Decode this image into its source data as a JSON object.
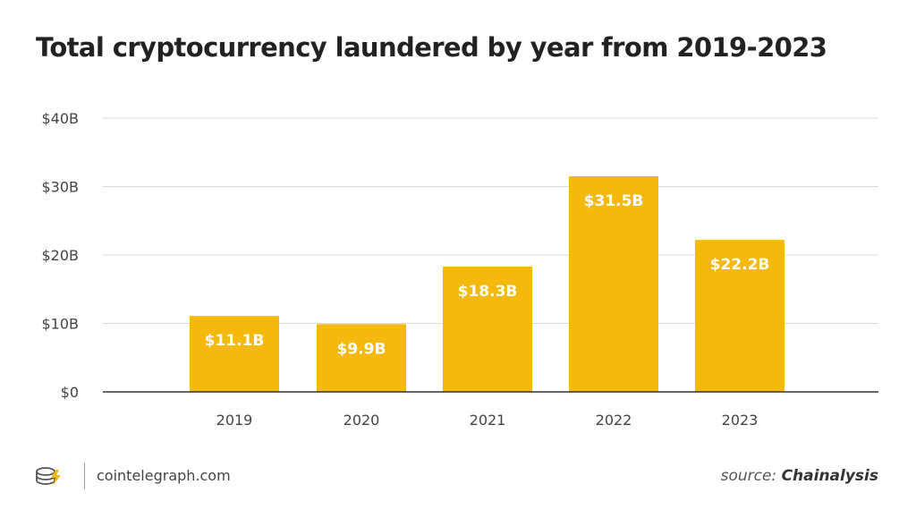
{
  "chart_data": {
    "type": "bar",
    "title": "Total cryptocurrency laundered by year from 2019-2023",
    "categories": [
      "2019",
      "2020",
      "2021",
      "2022",
      "2023"
    ],
    "values": [
      11.1,
      9.9,
      18.3,
      31.5,
      22.2
    ],
    "data_labels": [
      "$11.1B",
      "$9.9B",
      "$18.3B",
      "$31.5B",
      "$22.2B"
    ],
    "ylim": [
      0,
      40
    ],
    "yticks": [
      0,
      10,
      20,
      30,
      40
    ],
    "ytick_labels": [
      "$0",
      "$10B",
      "$20B",
      "$30B",
      "$40B"
    ],
    "xlabel": "",
    "ylabel": "",
    "grid": true,
    "bar_color": "#f5b80d"
  },
  "footer": {
    "site": "cointelegraph.com",
    "source_prefix": "source:",
    "source_name": "Chainalysis"
  },
  "colors": {
    "bar": "#f5b80d",
    "grid": "#d9d9d9",
    "axis": "#333333",
    "label_text": "#ffffff",
    "logo": "#f5b80d"
  }
}
